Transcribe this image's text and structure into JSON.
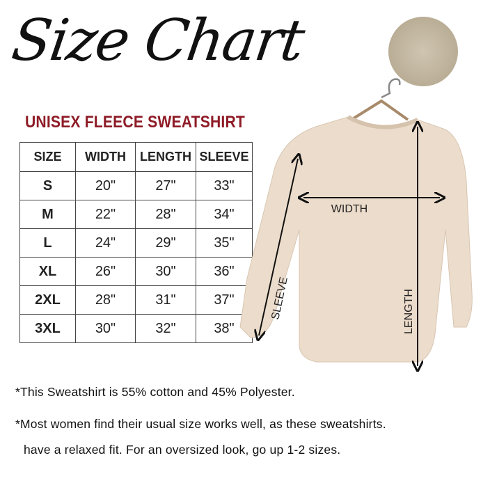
{
  "header": {
    "title": "Size Chart",
    "subtitle": "UNISEX FLEECE SWEATSHIRT"
  },
  "table": {
    "columns": [
      "SIZE",
      "WIDTH",
      "LENGTH",
      "SLEEVE"
    ],
    "rows": [
      [
        "S",
        "20\"",
        "27\"",
        "33\""
      ],
      [
        "M",
        "22\"",
        "28\"",
        "34\""
      ],
      [
        "L",
        "24\"",
        "29\"",
        "35\""
      ],
      [
        "XL",
        "26\"",
        "30\"",
        "36\""
      ],
      [
        "2XL",
        "28\"",
        "31\"",
        "37\""
      ],
      [
        "3XL",
        "30\"",
        "32\"",
        "38\""
      ]
    ]
  },
  "diagram": {
    "width_label": "WIDTH",
    "length_label": "LENGTH",
    "sleeve_label": "SLEEVE",
    "shirt_color": "#ecdccb",
    "title_color": "#8e1b26"
  },
  "notes": [
    "*This Sweatshirt is 55% cotton and 45% Polyester.",
    "*Most women find their usual size works well, as these sweatshirts.",
    "have a relaxed fit. For an oversized look, go up 1-2 sizes."
  ]
}
